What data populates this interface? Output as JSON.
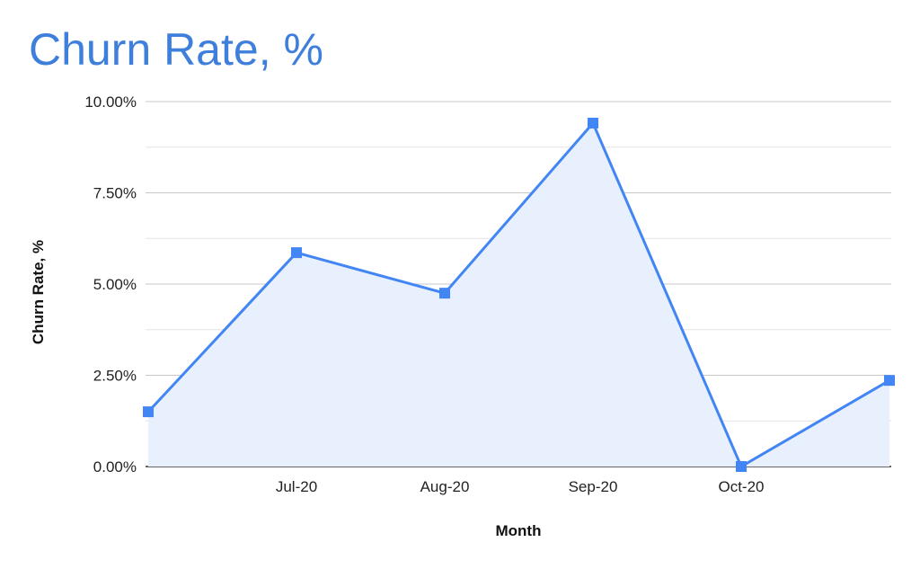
{
  "chart_data": {
    "type": "area",
    "title": "Churn Rate, %",
    "xlabel": "Month",
    "ylabel": "Churn Rate, %",
    "categories": [
      "",
      "Jul-20",
      "Aug-20",
      "Sep-20",
      "Oct-20",
      ""
    ],
    "series": [
      {
        "values": [
          1.5,
          5.86,
          4.75,
          9.41,
          0.0,
          2.36
        ]
      }
    ],
    "ylim": [
      0,
      10
    ],
    "yticks": [
      "0.00%",
      "2.50%",
      "5.00%",
      "7.50%",
      "10.00%"
    ],
    "ytick_values": [
      0,
      2.5,
      5,
      7.5,
      10
    ],
    "grid": true,
    "marker": "square",
    "colors": {
      "line": "#4285f4",
      "fill": "#e8f0fd",
      "title": "#3f7fdc"
    }
  }
}
